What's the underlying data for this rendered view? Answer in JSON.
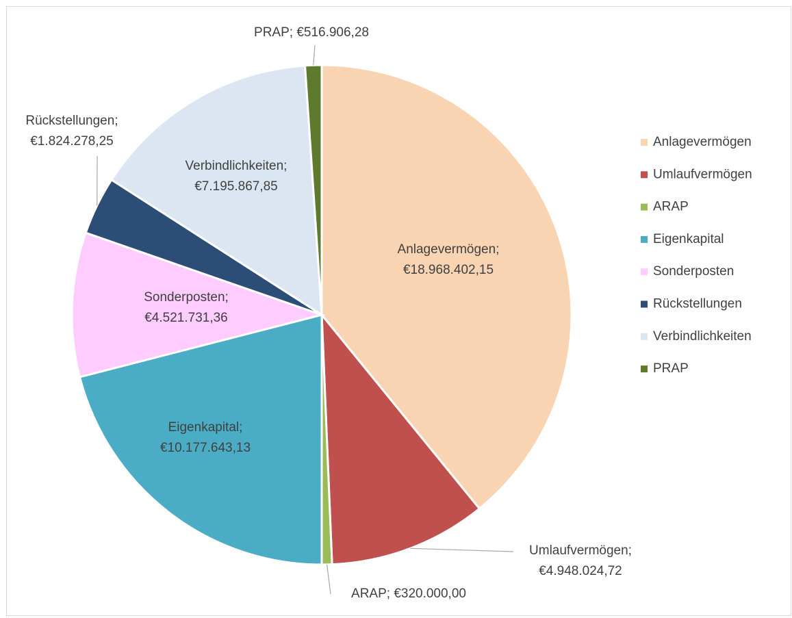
{
  "chart_data": {
    "type": "pie",
    "categories": [
      "Anlagevermögen",
      "Umlaufvermögen",
      "ARAP",
      "Eigenkapital",
      "Sonderposten",
      "Rückstellungen",
      "Verbindlichkeiten",
      "PRAP"
    ],
    "values": [
      18968402.15,
      4948024.72,
      320000,
      10177643.13,
      4521731.36,
      1824278.25,
      7195867.85,
      516906.28
    ],
    "value_labels": [
      "Anlagevermögen; €18.968.402,15",
      "Umlaufvermögen; €4.948.024,72",
      "ARAP;  €320.000,00",
      "Eigenkapital; €10.177.643,13",
      "Sonderposten; €4.521.731,36",
      "Rückstellungen; €1.824.278,25",
      "Verbindlichkeiten; €7.195.867,85",
      "PRAP;  €516.906,28"
    ],
    "colors": [
      "#f9d4b2",
      "#c0504d",
      "#9bbb59",
      "#4bacc6",
      "#ffccff",
      "#2c4d75",
      "#dce6f2",
      "#5e7a2e"
    ],
    "legend": "right"
  }
}
